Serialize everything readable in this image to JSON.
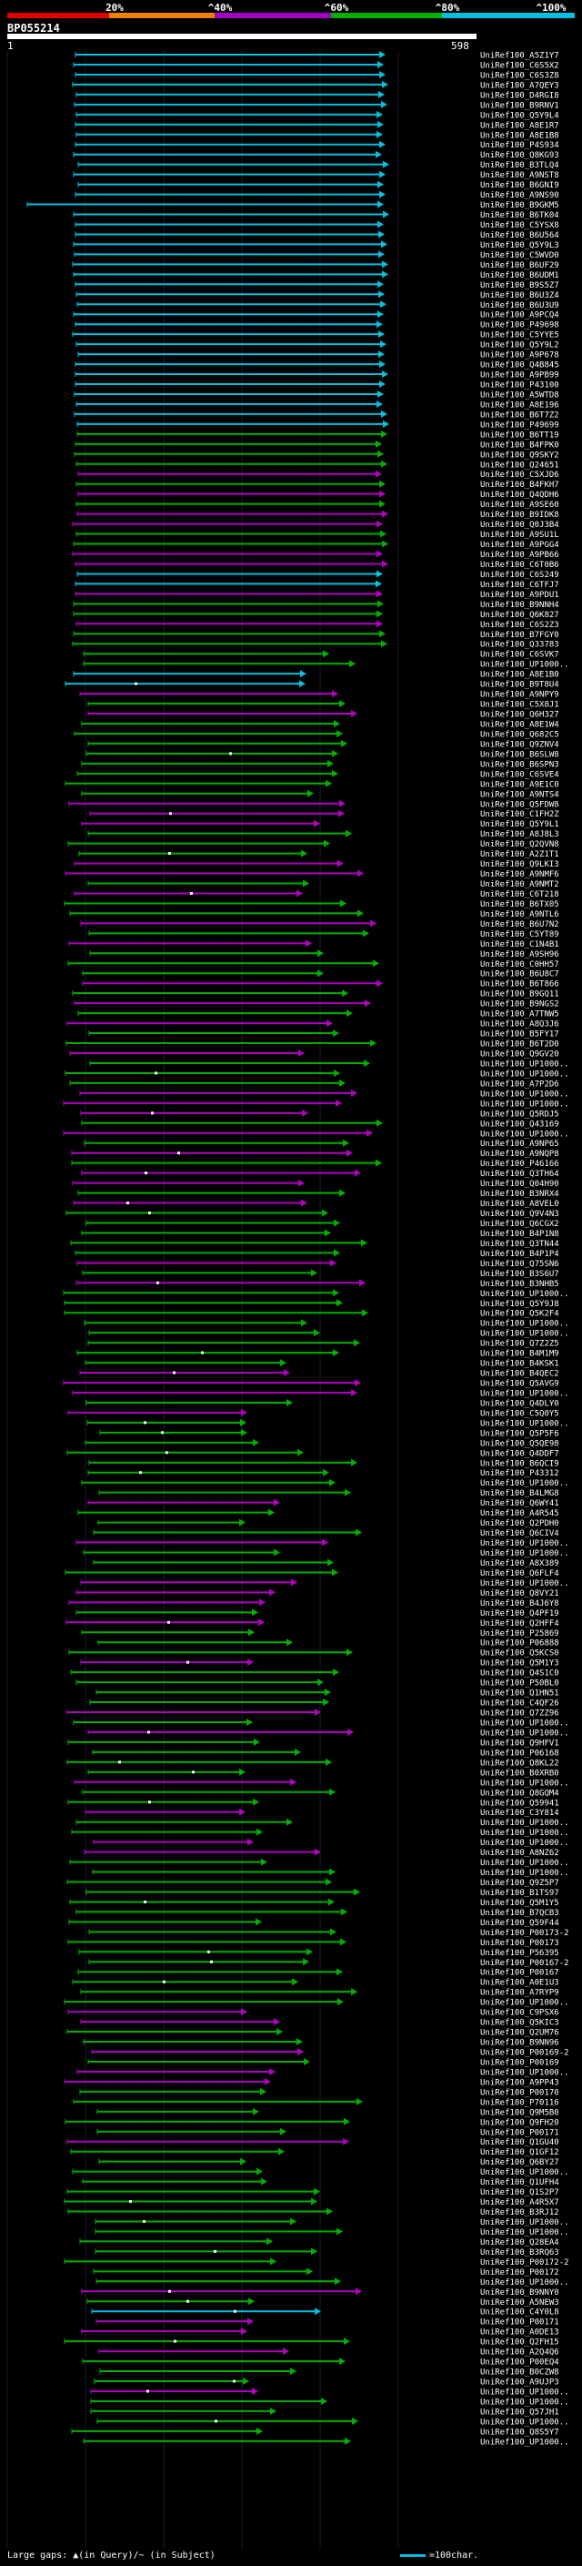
{
  "title": "BP055214",
  "query_start": "1",
  "query_end": "598",
  "identity_scale": {
    "labels": [
      "20%",
      "^40%",
      "^60%",
      "^80%",
      "^100%"
    ],
    "colors": [
      "#e00000",
      "#f08000",
      "#a000c0",
      "#00b000",
      "#00c0e0"
    ]
  },
  "footer": {
    "legend": "Large gaps: ▲(in Query)/~ (in Subject)",
    "scale": "=100char."
  },
  "hits": [
    "UniRef100_A5Z1Y7",
    "UniRef100_C6S5X2",
    "UniRef100_C6S3Z8",
    "UniRef100_A7QEY3",
    "UniRef100_D4RGI8",
    "UniRef100_B9RNV1",
    "UniRef100_Q5Y9L4",
    "UniRef100_A8E1R7",
    "UniRef100_A8E1B8",
    "UniRef100_P4S934",
    "UniRef100_Q8KG93",
    "UniRef100_B3TLQ4",
    "UniRef100_A9NST8",
    "UniRef100_B6GNI9",
    "UniRef100_A9NS90",
    "UniRef100_B9GKM5",
    "UniRef100_B6TK04",
    "UniRef100_C5YSX8",
    "UniRef100_B6U564",
    "UniRef100_Q5Y9L3",
    "UniRef100_C5WVD0",
    "UniRef100_B6UF29",
    "UniRef100_B6UDM1",
    "UniRef100_B9S5Z7",
    "UniRef100_B6U3Z4",
    "UniRef100_B6U3U9",
    "UniRef100_A9PCQ4",
    "UniRef100_P49698",
    "UniRef100_C5YYE5",
    "UniRef100_Q5Y9L2",
    "UniRef100_A9P678",
    "UniRef100_Q4B845",
    "UniRef100_A9PB99",
    "UniRef100_P43100",
    "UniRef100_A5WTD8",
    "UniRef100_A8E196",
    "UniRef100_B6T7Z2",
    "UniRef100_P49699",
    "UniRef100_B6TT19",
    "UniRef100_B4FPK0",
    "UniRef100_Q9SKY2",
    "UniRef100_Q24651",
    "UniRef100_C5XJD6",
    "UniRef100_B4FKH7",
    "UniRef100_Q4QDH6",
    "UniRef100_A9SE60",
    "UniRef100_B9IDK8",
    "UniRef100_Q0J3B4",
    "UniRef100_A9SU1L",
    "UniRef100_A9PGG4",
    "UniRef100_A9PB66",
    "UniRef100_C6T0B6",
    "UniRef100_C6S249",
    "UniRef100_C6TFJ7",
    "UniRef100_A9PDU1",
    "UniRef100_B9NNH4",
    "UniRef100_Q6K827",
    "UniRef100_C6S2Z3",
    "UniRef100_B7FGY0",
    "UniRef100_Q33783",
    "UniRef100_C6SVK7",
    "UniRef100_UP1000..",
    "UniRef100_A8E1B0",
    "UniRef100_B9T8U4",
    "UniRef100_A9NPY9",
    "UniRef100_C5X8J1",
    "UniRef100_Q6H327",
    "UniRef100_A8E1W4",
    "UniRef100_Q682C5",
    "UniRef100_Q9ZNV4",
    "UniRef100_B6SLW8",
    "UniRef100_B6SPN3",
    "UniRef100_C6SVE4",
    "UniRef100_A9E1C0",
    "UniRef100_A9NTS4",
    "UniRef100_Q5FDW8",
    "UniRef100_C1FH2Z",
    "UniRef100_Q5Y9L1",
    "UniRef100_A8J8L3",
    "UniRef100_Q2QVN8",
    "UniRef100_A2Z1T1",
    "UniRef100_Q9LKI3",
    "UniRef100_A9NMF6",
    "UniRef100_A9NMT2",
    "UniRef100_C6T218",
    "UniRef100_B6TX05",
    "UniRef100_A9NTL6",
    "UniRef100_B6U7N2",
    "UniRef100_C5YT89",
    "UniRef100_C1N4B1",
    "UniRef100_A9SH96",
    "UniRef100_C0HH57",
    "UniRef100_B6U8C7",
    "UniRef100_B6T866",
    "UniRef100_B9GQ11",
    "UniRef100_B9NGS2",
    "UniRef100_A7TNW5",
    "UniRef100_A8Q3J6",
    "UniRef100_B5FY17",
    "UniRef100_B6T2D0",
    "UniRef100_Q9GV20",
    "UniRef100_UP1000..",
    "UniRef100_UP1000..",
    "UniRef100_A7P2D6",
    "UniRef100_UP1000..",
    "UniRef100_UP1000..",
    "UniRef100_Q5RDJ5",
    "UniRef100_Q43169",
    "UniRef100_UP1000..",
    "UniRef100_A9NP65",
    "UniRef100_A9NQP8",
    "UniRef100_P46166",
    "UniRef100_Q3TH64",
    "UniRef100_Q04H90",
    "UniRef100_B3NRX4",
    "UniRef100_A8VEL0",
    "UniRef100_Q9V4N3",
    "UniRef100_Q6CGX2",
    "UniRef100_B4P1N8",
    "UniRef100_Q3TN44",
    "UniRef100_B4P1P4",
    "UniRef100_Q75SN6",
    "UniRef100_B3S6U7",
    "UniRef100_B3NHB5",
    "UniRef100_UP1000..",
    "UniRef100_Q5Y9J8",
    "UniRef100_Q5K2F4",
    "UniRef100_UP1000..",
    "UniRef100_UP1000..",
    "UniRef100_Q7Z2Z5",
    "UniRef100_B4M1M9",
    "UniRef100_B4KSK1",
    "UniRef100_B4QEC2",
    "UniRef100_Q5AVG9",
    "UniRef100_UP1000..",
    "UniRef100_Q4DLY0",
    "UniRef100_C5Q0Y5",
    "UniRef100_UP1000..",
    "UniRef100_Q5P5F6",
    "UniRef100_Q5QE98",
    "UniRef100_Q4DDF7",
    "UniRef100_B6QCI9",
    "UniRef100_P43312",
    "UniRef100_UP1000..",
    "UniRef100_B4LMG8",
    "UniRef100_Q6WY41",
    "UniRef100_A4R545",
    "UniRef100_Q2PDH0",
    "UniRef100_Q6CIV4",
    "UniRef100_UP1000..",
    "UniRef100_UP1000..",
    "UniRef100_A8X389",
    "UniRef100_Q6FLF4",
    "UniRef100_UP1000..",
    "UniRef100_Q8VY21",
    "UniRef100_B4J6Y8",
    "UniRef100_Q4PF19",
    "UniRef100_Q2HFF4",
    "UniRef100_P25869",
    "UniRef100_P06888",
    "UniRef100_Q5KCS0",
    "UniRef100_Q5M1Y3",
    "UniRef100_Q4S1C0",
    "UniRef100_P50BL0",
    "UniRef100_Q1HN51",
    "UniRef100_C4QF26",
    "UniRef100_Q7ZZ96",
    "UniRef100_UP1000..",
    "UniRef100_UP1000..",
    "UniRef100_Q9HFV1",
    "UniRef100_P06168",
    "UniRef100_Q8KL22",
    "UniRef100_B0XRB0",
    "UniRef100_UP1000..",
    "UniRef100_Q8GQM4",
    "UniRef100_Q59941",
    "UniRef100_C3Y814",
    "UniRef100_UP1000..",
    "UniRef100_UP1000..",
    "UniRef100_UP1000..",
    "UniRef100_A8NZ62",
    "UniRef100_UP1000..",
    "UniRef100_UP1000..",
    "UniRef100_Q9Z5P7",
    "UniRef100_B1TS97",
    "UniRef100_Q5M1Y5",
    "UniRef100_B7QCB3",
    "UniRef100_Q59F44",
    "UniRef100_P00173-2",
    "UniRef100_P00173",
    "UniRef100_P56395",
    "UniRef100_P00167-2",
    "UniRef100_P00167",
    "UniRef100_A0E1U3",
    "UniRef100_A7RYP9",
    "UniRef100_UP1000..",
    "UniRef100_C9PSX6",
    "UniRef100_Q5KIC3",
    "UniRef100_Q2UM76",
    "UniRef100_B9NN96",
    "UniRef100_P00169-2",
    "UniRef100_P00169",
    "UniRef100_UP1000..",
    "UniRef100_A9PP43",
    "UniRef100_P00170",
    "UniRef100_P70116",
    "UniRef100_Q9M5B0",
    "UniRef100_Q9FH20",
    "UniRef100_P00171",
    "UniRef100_Q1GU40",
    "UniRef100_Q1GF12",
    "UniRef100_Q6BY27",
    "UniRef100_UP1000..",
    "UniRef100_Q1UFH4",
    "UniRef100_Q1S2P7",
    "UniRef100_A4R5X7",
    "UniRef100_B3RJ12",
    "UniRef100_UP1000..",
    "UniRef100_UP1000..",
    "UniRef100_Q28EA4",
    "UniRef100_B3RQ63",
    "UniRef100_P00172-2",
    "UniRef100_P00172",
    "UniRef100_UP1000..",
    "UniRef100_B9NNY0",
    "UniRef100_A5NEW3",
    "UniRef100_C4Y0L8",
    "UniRef100_P00171",
    "UniRef100_A0DE13",
    "UniRef100_Q2FH15",
    "UniRef100_A2Q4Q6",
    "UniRef100_P00EQ4",
    "UniRef100_B0CZW8",
    "UniRef100_A9UJP3",
    "UniRef100_UP1000..",
    "UniRef100_UP1000..",
    "UniRef100_Q57JH1",
    "UniRef100_UP1000..",
    "UniRef100_Q8S5Y7",
    "UniRef100_UP1000.."
  ]
}
